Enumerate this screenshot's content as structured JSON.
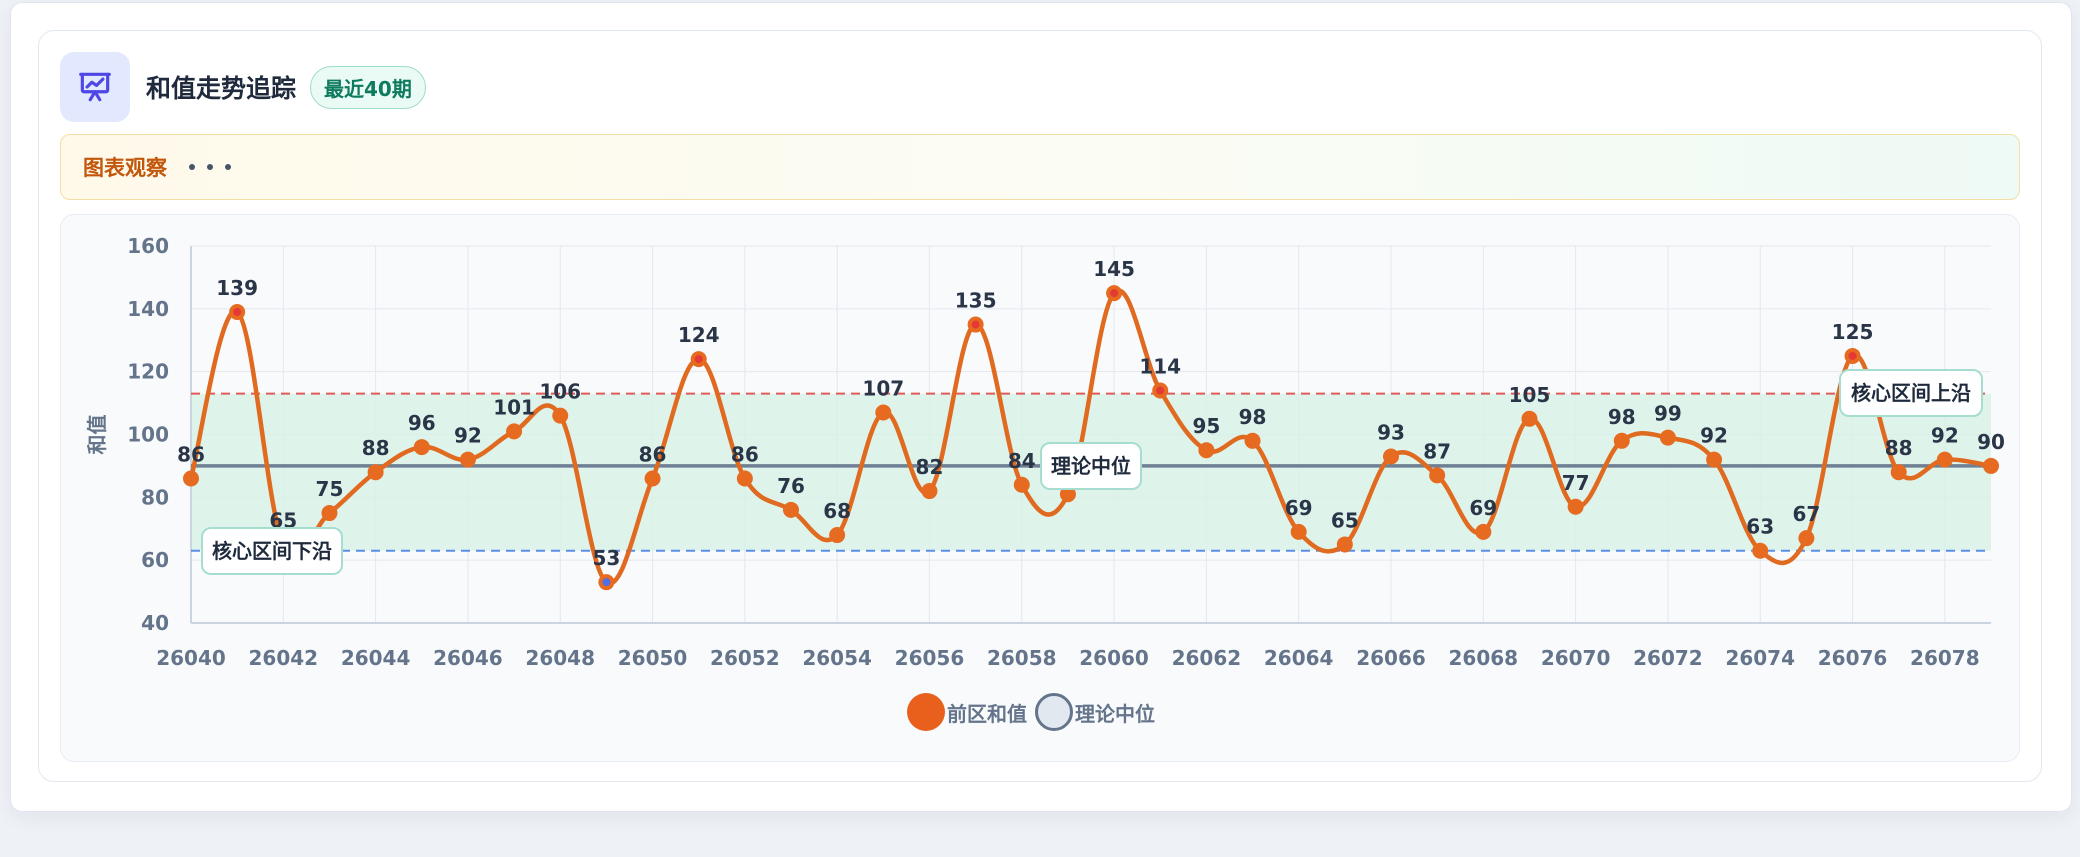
{
  "header": {
    "title": "和值走势追踪",
    "badge": "最近40期",
    "icon": "presentation-chart-icon"
  },
  "note": {
    "label": "图表观察"
  },
  "colors": {
    "line": "#e06a20",
    "point": "#e66a1f",
    "point_high": "#e53935",
    "point_low": "#4f6ee8",
    "median": "#64748b",
    "upper": "#e15a5a",
    "lower": "#5b8ee6",
    "band": "#d6f1e6"
  },
  "chart_data": {
    "type": "line",
    "x": [
      "26040",
      "26041",
      "26042",
      "26043",
      "26044",
      "26045",
      "26046",
      "26047",
      "26048",
      "26049",
      "26050",
      "26051",
      "26052",
      "26053",
      "26054",
      "26055",
      "26056",
      "26057",
      "26058",
      "26059",
      "26060",
      "26061",
      "26062",
      "26063",
      "26064",
      "26065",
      "26066",
      "26067",
      "26068",
      "26069",
      "26070",
      "26071",
      "26072",
      "26073",
      "26074",
      "26075",
      "26076",
      "26077",
      "26078",
      "26079"
    ],
    "series": [
      {
        "name": "前区和值",
        "values": [
          86,
          139,
          65,
          75,
          88,
          96,
          92,
          101,
          106,
          53,
          86,
          124,
          86,
          76,
          68,
          107,
          82,
          135,
          84,
          81,
          145,
          114,
          95,
          98,
          69,
          65,
          93,
          87,
          69,
          105,
          77,
          98,
          99,
          92,
          63,
          67,
          125,
          88,
          92,
          90
        ]
      }
    ],
    "reference_lines": [
      {
        "name": "理论中位",
        "value": 90,
        "label": "理论中位"
      },
      {
        "name": "核心区间上沿",
        "value": 113,
        "label": "核心区间上沿"
      },
      {
        "name": "核心区间下沿",
        "value": 63,
        "label": "核心区间下沿"
      }
    ],
    "xticks": [
      "26040",
      "26042",
      "26044",
      "26046",
      "26048",
      "26050",
      "26052",
      "26054",
      "26056",
      "26058",
      "26060",
      "26062",
      "26064",
      "26066",
      "26068",
      "26070",
      "26072",
      "26074",
      "26076",
      "26078"
    ],
    "yticks": [
      40,
      60,
      80,
      100,
      120,
      140,
      160
    ],
    "ylim": [
      40,
      160
    ],
    "ylabel": "和值",
    "xlabel": "",
    "grid": true,
    "legend": [
      {
        "label": "前区和值",
        "position": "bottom"
      },
      {
        "label": "理论中位",
        "position": "bottom"
      }
    ]
  }
}
